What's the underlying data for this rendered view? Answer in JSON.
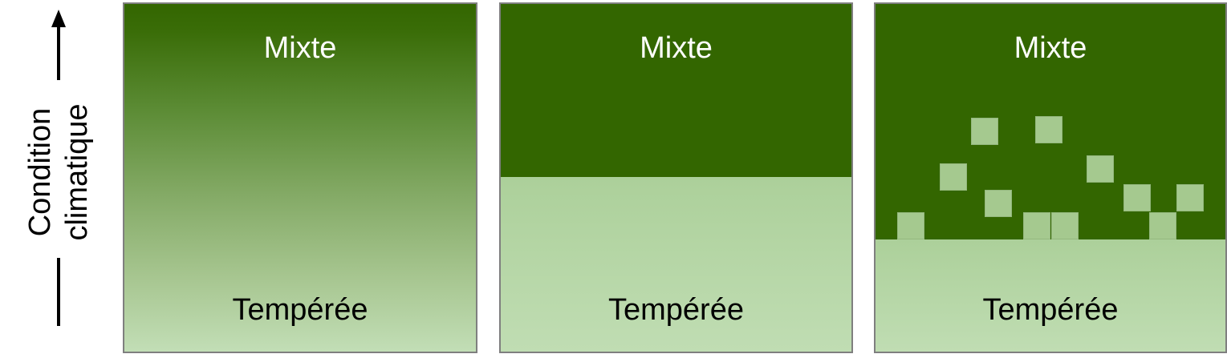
{
  "axis": {
    "label": "Condition\nclimatique"
  },
  "panels": [
    {
      "top_label": "Mixte",
      "bottom_label": "Tempérée",
      "transition": "gradual"
    },
    {
      "top_label": "Mixte",
      "bottom_label": "Tempérée",
      "transition": "sharp"
    },
    {
      "top_label": "Mixte",
      "bottom_label": "Tempérée",
      "transition": "patchy"
    }
  ],
  "colors": {
    "mixed_forest": "#336600",
    "temperate_forest": "#c0ddb3",
    "patch": "#a5c98f",
    "border": "#7f7f7f"
  }
}
